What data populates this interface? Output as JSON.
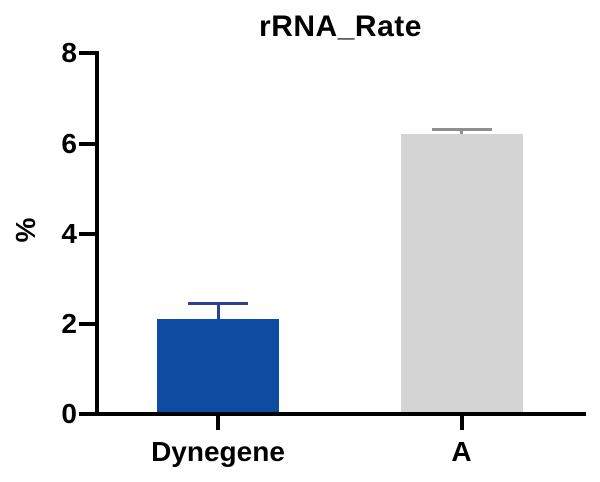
{
  "chart_data": {
    "type": "bar",
    "title": "rRNA_Rate",
    "ylabel": "%",
    "xlabel": "",
    "categories": [
      "Dynegene",
      "A"
    ],
    "values": [
      2.1,
      6.2
    ],
    "errors_plus": [
      0.35,
      0.1
    ],
    "error_style": "upper-only-with-cap",
    "ylim": [
      0,
      8
    ],
    "yticks": [
      0,
      2,
      4,
      6,
      8
    ],
    "bar_colors": [
      "#0e4ca1",
      "#d4d4d4"
    ],
    "error_colors": [
      "#2e3f94",
      "#8f8f8f"
    ],
    "axis_color": "#000000",
    "text_color": "#000000",
    "background": "#ffffff",
    "grid": false,
    "legend": "none"
  }
}
